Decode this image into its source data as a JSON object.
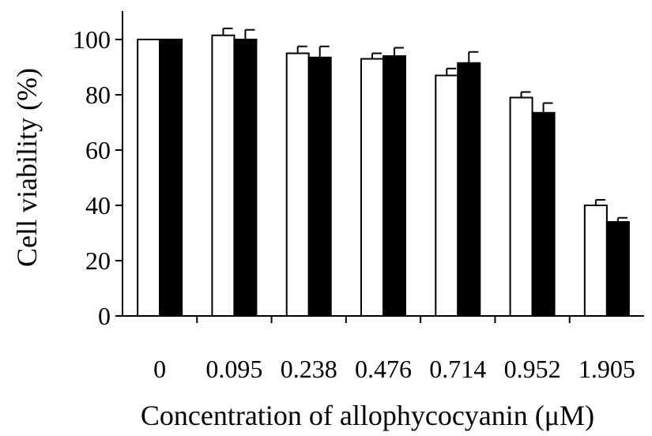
{
  "chart_data": {
    "type": "bar",
    "categories": [
      "0",
      "0.095",
      "0.238",
      "0.476",
      "0.714",
      "0.952",
      "1.905"
    ],
    "series": [
      {
        "fill": "#ffffff",
        "values": [
          100,
          101.5,
          95,
          93,
          87,
          79,
          40
        ],
        "errors": [
          0,
          2.5,
          2.5,
          2,
          2.5,
          2,
          2
        ]
      },
      {
        "fill": "#000000",
        "values": [
          100,
          100,
          93.5,
          94,
          91.5,
          73.5,
          34
        ],
        "errors": [
          0,
          3.5,
          4,
          3,
          4,
          3.5,
          1.5
        ]
      }
    ],
    "xlabel": "Concentration of allophycocyanin (μM)",
    "ylabel": "Cell viability (%)",
    "ylim": [
      0,
      100
    ],
    "yticks": [
      "0",
      "20",
      "40",
      "60",
      "80",
      "100"
    ],
    "grid": false,
    "legend": "none"
  }
}
